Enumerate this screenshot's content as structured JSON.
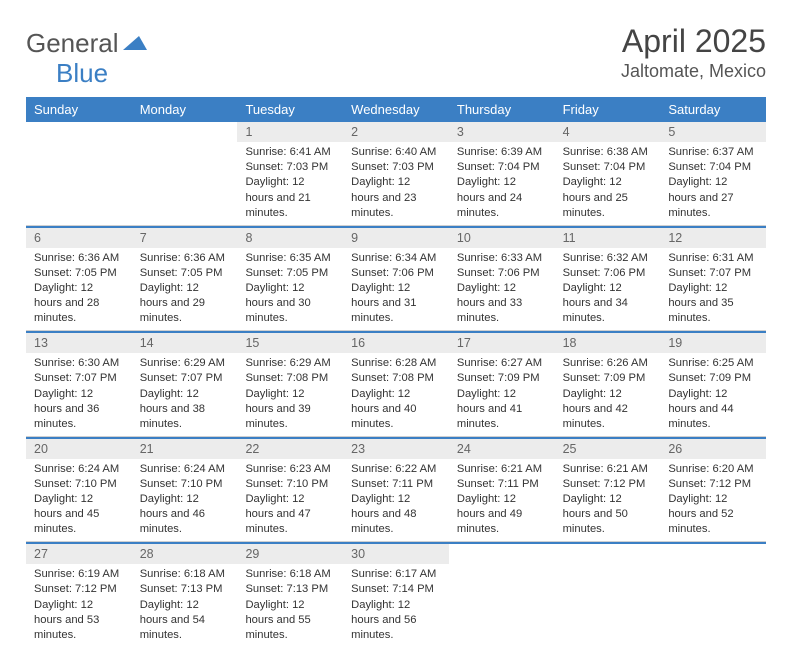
{
  "brand": {
    "part1": "General",
    "part2": "Blue"
  },
  "title": "April 2025",
  "location": "Jaltomate, Mexico",
  "colors": {
    "accent": "#3b7fc4",
    "header_bg": "#ececec",
    "text": "#333333",
    "muted": "#666666",
    "background": "#ffffff"
  },
  "weekdays": [
    "Sunday",
    "Monday",
    "Tuesday",
    "Wednesday",
    "Thursday",
    "Friday",
    "Saturday"
  ],
  "weeks": [
    [
      null,
      null,
      {
        "day": "1",
        "sunrise": "6:41 AM",
        "sunset": "7:03 PM",
        "daylight": "12 hours and 21 minutes."
      },
      {
        "day": "2",
        "sunrise": "6:40 AM",
        "sunset": "7:03 PM",
        "daylight": "12 hours and 23 minutes."
      },
      {
        "day": "3",
        "sunrise": "6:39 AM",
        "sunset": "7:04 PM",
        "daylight": "12 hours and 24 minutes."
      },
      {
        "day": "4",
        "sunrise": "6:38 AM",
        "sunset": "7:04 PM",
        "daylight": "12 hours and 25 minutes."
      },
      {
        "day": "5",
        "sunrise": "6:37 AM",
        "sunset": "7:04 PM",
        "daylight": "12 hours and 27 minutes."
      }
    ],
    [
      {
        "day": "6",
        "sunrise": "6:36 AM",
        "sunset": "7:05 PM",
        "daylight": "12 hours and 28 minutes."
      },
      {
        "day": "7",
        "sunrise": "6:36 AM",
        "sunset": "7:05 PM",
        "daylight": "12 hours and 29 minutes."
      },
      {
        "day": "8",
        "sunrise": "6:35 AM",
        "sunset": "7:05 PM",
        "daylight": "12 hours and 30 minutes."
      },
      {
        "day": "9",
        "sunrise": "6:34 AM",
        "sunset": "7:06 PM",
        "daylight": "12 hours and 31 minutes."
      },
      {
        "day": "10",
        "sunrise": "6:33 AM",
        "sunset": "7:06 PM",
        "daylight": "12 hours and 33 minutes."
      },
      {
        "day": "11",
        "sunrise": "6:32 AM",
        "sunset": "7:06 PM",
        "daylight": "12 hours and 34 minutes."
      },
      {
        "day": "12",
        "sunrise": "6:31 AM",
        "sunset": "7:07 PM",
        "daylight": "12 hours and 35 minutes."
      }
    ],
    [
      {
        "day": "13",
        "sunrise": "6:30 AM",
        "sunset": "7:07 PM",
        "daylight": "12 hours and 36 minutes."
      },
      {
        "day": "14",
        "sunrise": "6:29 AM",
        "sunset": "7:07 PM",
        "daylight": "12 hours and 38 minutes."
      },
      {
        "day": "15",
        "sunrise": "6:29 AM",
        "sunset": "7:08 PM",
        "daylight": "12 hours and 39 minutes."
      },
      {
        "day": "16",
        "sunrise": "6:28 AM",
        "sunset": "7:08 PM",
        "daylight": "12 hours and 40 minutes."
      },
      {
        "day": "17",
        "sunrise": "6:27 AM",
        "sunset": "7:09 PM",
        "daylight": "12 hours and 41 minutes."
      },
      {
        "day": "18",
        "sunrise": "6:26 AM",
        "sunset": "7:09 PM",
        "daylight": "12 hours and 42 minutes."
      },
      {
        "day": "19",
        "sunrise": "6:25 AM",
        "sunset": "7:09 PM",
        "daylight": "12 hours and 44 minutes."
      }
    ],
    [
      {
        "day": "20",
        "sunrise": "6:24 AM",
        "sunset": "7:10 PM",
        "daylight": "12 hours and 45 minutes."
      },
      {
        "day": "21",
        "sunrise": "6:24 AM",
        "sunset": "7:10 PM",
        "daylight": "12 hours and 46 minutes."
      },
      {
        "day": "22",
        "sunrise": "6:23 AM",
        "sunset": "7:10 PM",
        "daylight": "12 hours and 47 minutes."
      },
      {
        "day": "23",
        "sunrise": "6:22 AM",
        "sunset": "7:11 PM",
        "daylight": "12 hours and 48 minutes."
      },
      {
        "day": "24",
        "sunrise": "6:21 AM",
        "sunset": "7:11 PM",
        "daylight": "12 hours and 49 minutes."
      },
      {
        "day": "25",
        "sunrise": "6:21 AM",
        "sunset": "7:12 PM",
        "daylight": "12 hours and 50 minutes."
      },
      {
        "day": "26",
        "sunrise": "6:20 AM",
        "sunset": "7:12 PM",
        "daylight": "12 hours and 52 minutes."
      }
    ],
    [
      {
        "day": "27",
        "sunrise": "6:19 AM",
        "sunset": "7:12 PM",
        "daylight": "12 hours and 53 minutes."
      },
      {
        "day": "28",
        "sunrise": "6:18 AM",
        "sunset": "7:13 PM",
        "daylight": "12 hours and 54 minutes."
      },
      {
        "day": "29",
        "sunrise": "6:18 AM",
        "sunset": "7:13 PM",
        "daylight": "12 hours and 55 minutes."
      },
      {
        "day": "30",
        "sunrise": "6:17 AM",
        "sunset": "7:14 PM",
        "daylight": "12 hours and 56 minutes."
      },
      null,
      null,
      null
    ]
  ],
  "labels": {
    "sunrise": "Sunrise:",
    "sunset": "Sunset:",
    "daylight": "Daylight:"
  }
}
